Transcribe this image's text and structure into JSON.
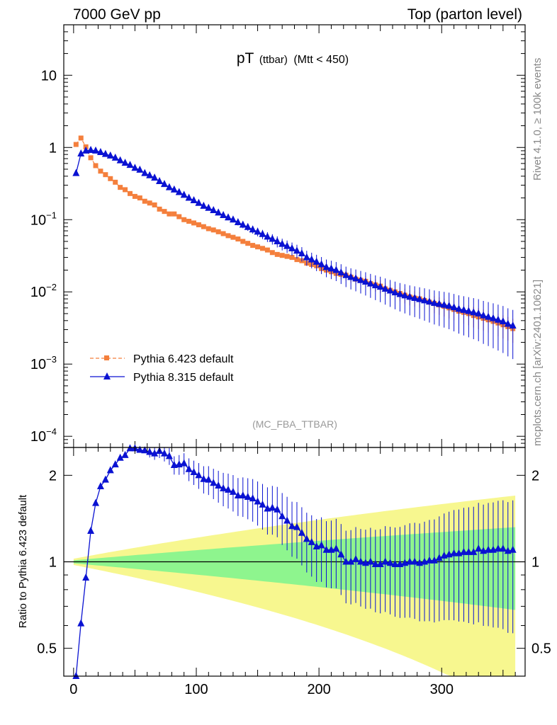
{
  "header": {
    "left": "7000 GeV pp",
    "right": "Top (parton level)"
  },
  "side_labels": {
    "rivet": "Rivet 4.1.0, ≥ 100k events",
    "mcplots": "mcplots.cern.ch [arXiv:2401.10621]"
  },
  "colors": {
    "pythia6": "#f47f3c",
    "pythia8": "#0a12d2",
    "band_outer": "#f7f78f",
    "band_inner": "#8ef58e"
  },
  "chart_data": [
    {
      "type": "scatter",
      "panel": "main",
      "title": "pT",
      "title_sub": "(ttbar)",
      "title_rest": "(Mtt < 450)",
      "watermark": "(MC_FBA_TTBAR)",
      "yscale": "log",
      "xlim": [
        -8,
        368
      ],
      "ylim": [
        7e-05,
        50
      ],
      "ytick_labels": [
        {
          "value": 10,
          "base": "10",
          "exp": ""
        },
        {
          "value": 1,
          "base": "1",
          "exp": ""
        },
        {
          "value": 0.1,
          "base": "10",
          "exp": "−1"
        },
        {
          "value": 0.01,
          "base": "10",
          "exp": "−2"
        },
        {
          "value": 0.001,
          "base": "10",
          "exp": "−3"
        },
        {
          "value": 0.0001,
          "base": "10",
          "exp": "−4"
        }
      ],
      "legend_position": "bottom-left",
      "series": [
        {
          "name": "Pythia 6.423 default",
          "marker": "square",
          "line": "dashed",
          "x": [
            2,
            6,
            10,
            14,
            18,
            22,
            26,
            30,
            34,
            38,
            42,
            46,
            50,
            54,
            58,
            62,
            66,
            70,
            74,
            78,
            82,
            86,
            90,
            94,
            98,
            102,
            106,
            110,
            114,
            118,
            122,
            126,
            130,
            134,
            138,
            142,
            146,
            150,
            154,
            158,
            162,
            166,
            170,
            174,
            178,
            182,
            186,
            190,
            194,
            198,
            202,
            206,
            210,
            214,
            218,
            222,
            226,
            230,
            234,
            238,
            242,
            246,
            250,
            254,
            258,
            262,
            266,
            270,
            274,
            278,
            282,
            286,
            290,
            294,
            298,
            302,
            306,
            310,
            314,
            318,
            322,
            326,
            330,
            334,
            338,
            342,
            346,
            350,
            354,
            358
          ],
          "y": [
            1.1,
            1.35,
            1.02,
            0.72,
            0.56,
            0.47,
            0.42,
            0.37,
            0.33,
            0.28,
            0.26,
            0.23,
            0.21,
            0.2,
            0.18,
            0.17,
            0.16,
            0.14,
            0.13,
            0.12,
            0.12,
            0.11,
            0.1,
            0.095,
            0.09,
            0.085,
            0.08,
            0.075,
            0.072,
            0.068,
            0.064,
            0.06,
            0.057,
            0.054,
            0.05,
            0.047,
            0.044,
            0.042,
            0.04,
            0.038,
            0.035,
            0.033,
            0.032,
            0.031,
            0.03,
            0.028,
            0.027,
            0.025,
            0.024,
            0.023,
            0.021,
            0.02,
            0.019,
            0.018,
            0.0175,
            0.017,
            0.016,
            0.015,
            0.0145,
            0.014,
            0.013,
            0.0125,
            0.012,
            0.011,
            0.0105,
            0.01,
            0.0095,
            0.009,
            0.0085,
            0.0082,
            0.008,
            0.0076,
            0.0072,
            0.0069,
            0.0066,
            0.0063,
            0.006,
            0.0057,
            0.0054,
            0.0052,
            0.005,
            0.0047,
            0.0045,
            0.0043,
            0.0041,
            0.0039,
            0.0037,
            0.0035,
            0.0033,
            0.0031
          ]
        },
        {
          "name": "Pythia 8.315 default",
          "marker": "triangle",
          "line": "solid",
          "x": [
            2,
            6,
            10,
            14,
            18,
            22,
            26,
            30,
            34,
            38,
            42,
            46,
            50,
            54,
            58,
            62,
            66,
            70,
            74,
            78,
            82,
            86,
            90,
            94,
            98,
            102,
            106,
            110,
            114,
            118,
            122,
            126,
            130,
            134,
            138,
            142,
            146,
            150,
            154,
            158,
            162,
            166,
            170,
            174,
            178,
            182,
            186,
            190,
            194,
            198,
            202,
            206,
            210,
            214,
            218,
            222,
            226,
            230,
            234,
            238,
            242,
            246,
            250,
            254,
            258,
            262,
            266,
            270,
            274,
            278,
            282,
            286,
            290,
            294,
            298,
            302,
            306,
            310,
            314,
            318,
            322,
            326,
            330,
            334,
            338,
            342,
            346,
            350,
            354,
            358
          ],
          "y": [
            0.44,
            0.82,
            0.9,
            0.92,
            0.9,
            0.86,
            0.81,
            0.77,
            0.72,
            0.66,
            0.61,
            0.57,
            0.52,
            0.49,
            0.44,
            0.41,
            0.38,
            0.34,
            0.31,
            0.28,
            0.26,
            0.24,
            0.22,
            0.2,
            0.185,
            0.17,
            0.155,
            0.145,
            0.135,
            0.125,
            0.115,
            0.107,
            0.1,
            0.092,
            0.085,
            0.079,
            0.073,
            0.068,
            0.063,
            0.058,
            0.054,
            0.05,
            0.046,
            0.043,
            0.04,
            0.037,
            0.034,
            0.03,
            0.028,
            0.026,
            0.024,
            0.022,
            0.021,
            0.02,
            0.0185,
            0.017,
            0.016,
            0.0153,
            0.0145,
            0.0138,
            0.013,
            0.0123,
            0.0117,
            0.011,
            0.0104,
            0.0098,
            0.0093,
            0.0089,
            0.0085,
            0.0082,
            0.0079,
            0.0076,
            0.0073,
            0.007,
            0.0068,
            0.0066,
            0.0064,
            0.0061,
            0.0058,
            0.0056,
            0.0054,
            0.0052,
            0.005,
            0.0047,
            0.0045,
            0.0043,
            0.0041,
            0.0039,
            0.0036,
            0.0034
          ]
        }
      ]
    },
    {
      "type": "scatter",
      "panel": "ratio",
      "ylabel": "Ratio to Pythia 6.423 default",
      "yscale": "log",
      "xlim": [
        -8,
        368
      ],
      "ylim": [
        0.4,
        2.5
      ],
      "xtick_labels": [
        "0",
        "100",
        "200",
        "300"
      ],
      "xtick_values": [
        0,
        100,
        200,
        300
      ],
      "ytick_labels": [
        "0.5",
        "1",
        "2"
      ],
      "ytick_values": [
        0.5,
        1,
        2
      ],
      "reference_line": 1,
      "band_halfwidth_inner_start": 0.012,
      "band_halfwidth_inner_end": 0.32,
      "band_halfwidth_outer_start": 0.025,
      "band_halfwidth_outer_end": 0.7,
      "series": [
        {
          "name": "Pythia 8.315 default / Pythia 6.423 default",
          "marker": "triangle",
          "x": [
            2,
            6,
            10,
            14,
            18,
            22,
            26,
            30,
            34,
            38,
            42,
            46,
            50,
            54,
            58,
            62,
            66,
            70,
            74,
            78,
            82,
            86,
            90,
            94,
            98,
            102,
            106,
            110,
            114,
            118,
            122,
            126,
            130,
            134,
            138,
            142,
            146,
            150,
            154,
            158,
            162,
            166,
            170,
            174,
            178,
            182,
            186,
            190,
            194,
            198,
            202,
            206,
            210,
            214,
            218,
            222,
            226,
            230,
            234,
            238,
            242,
            246,
            250,
            254,
            258,
            262,
            266,
            270,
            274,
            278,
            282,
            286,
            290,
            294,
            298,
            302,
            306,
            310,
            314,
            318,
            322,
            326,
            330,
            334,
            338,
            342,
            346,
            350,
            354,
            358
          ],
          "y": [
            0.4,
            0.61,
            0.88,
            1.28,
            1.6,
            1.83,
            1.93,
            2.08,
            2.18,
            2.3,
            2.35,
            2.48,
            2.48,
            2.45,
            2.44,
            2.41,
            2.38,
            2.43,
            2.38,
            2.33,
            2.17,
            2.18,
            2.2,
            2.1,
            2.05,
            2.0,
            1.94,
            1.93,
            1.88,
            1.84,
            1.8,
            1.78,
            1.75,
            1.7,
            1.7,
            1.68,
            1.66,
            1.62,
            1.58,
            1.53,
            1.54,
            1.52,
            1.44,
            1.39,
            1.33,
            1.32,
            1.26,
            1.2,
            1.17,
            1.13,
            1.14,
            1.1,
            1.1,
            1.11,
            1.06,
            1.0,
            1.0,
            1.02,
            1.0,
            0.99,
            1.0,
            0.98,
            0.98,
            1.0,
            0.99,
            0.98,
            0.98,
            0.99,
            1.0,
            1.0,
            0.99,
            1.0,
            1.01,
            1.01,
            1.03,
            1.05,
            1.06,
            1.07,
            1.07,
            1.08,
            1.08,
            1.08,
            1.11,
            1.09,
            1.1,
            1.1,
            1.11,
            1.11,
            1.09,
            1.1
          ]
        }
      ]
    }
  ]
}
